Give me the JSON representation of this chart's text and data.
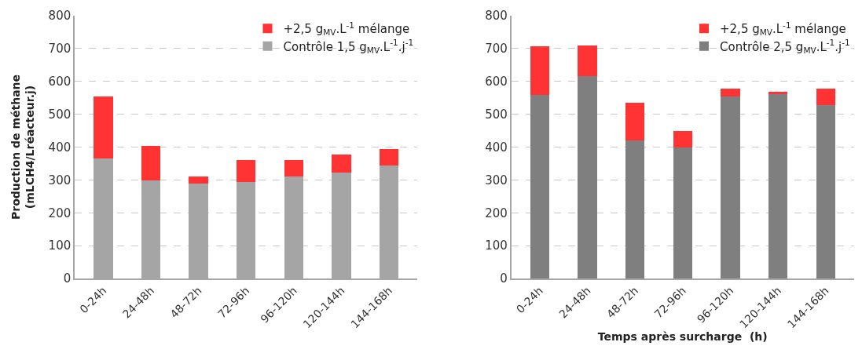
{
  "chart_data": [
    {
      "type": "bar",
      "stacked": true,
      "ylabel": "Production de méthane\n(mLCH4/Lréacteur.j)",
      "categories": [
        "0-24h",
        "24-48h",
        "48-72h",
        "72-96h",
        "96-120h",
        "120-144h",
        "144-168h"
      ],
      "ylim": [
        0,
        800
      ],
      "yticks": [
        0,
        100,
        200,
        300,
        400,
        500,
        600,
        700,
        800
      ],
      "grid": "y",
      "legend": "top right",
      "series": [
        {
          "name": "Contrôle 1,5 g$_{MV}$.L$^{-1}$.j$^{-1}$",
          "color": "#a5a5a5",
          "values": [
            365,
            298,
            290,
            294,
            310,
            323,
            344
          ]
        },
        {
          "name": "+2,5 g$_{MV}$.L$^{-1}$ mélange",
          "color": "#ff3333",
          "values": [
            189,
            105,
            21,
            67,
            51,
            54,
            51
          ]
        }
      ]
    },
    {
      "type": "bar",
      "stacked": true,
      "xlabel": "Temps après surcharge  (h)",
      "categories": [
        "0-24h",
        "24-48h",
        "48-72h",
        "72-96h",
        "96-120h",
        "120-144h",
        "144-168h"
      ],
      "ylim": [
        0,
        800
      ],
      "yticks": [
        0,
        100,
        200,
        300,
        400,
        500,
        600,
        700,
        800
      ],
      "grid": "y",
      "legend": "top right",
      "series": [
        {
          "name": "Contrôle 2,5 g$_{MV}$.L$^{-1}$.j$^{-1}$",
          "color": "#7f7f7f",
          "values": [
            558,
            615,
            420,
            399,
            553,
            562,
            528
          ]
        },
        {
          "name": "+2,5 g$_{MV}$.L$^{-1}$ mélange",
          "color": "#ff3333",
          "values": [
            148,
            95,
            116,
            50,
            25,
            7,
            50
          ]
        }
      ]
    }
  ]
}
